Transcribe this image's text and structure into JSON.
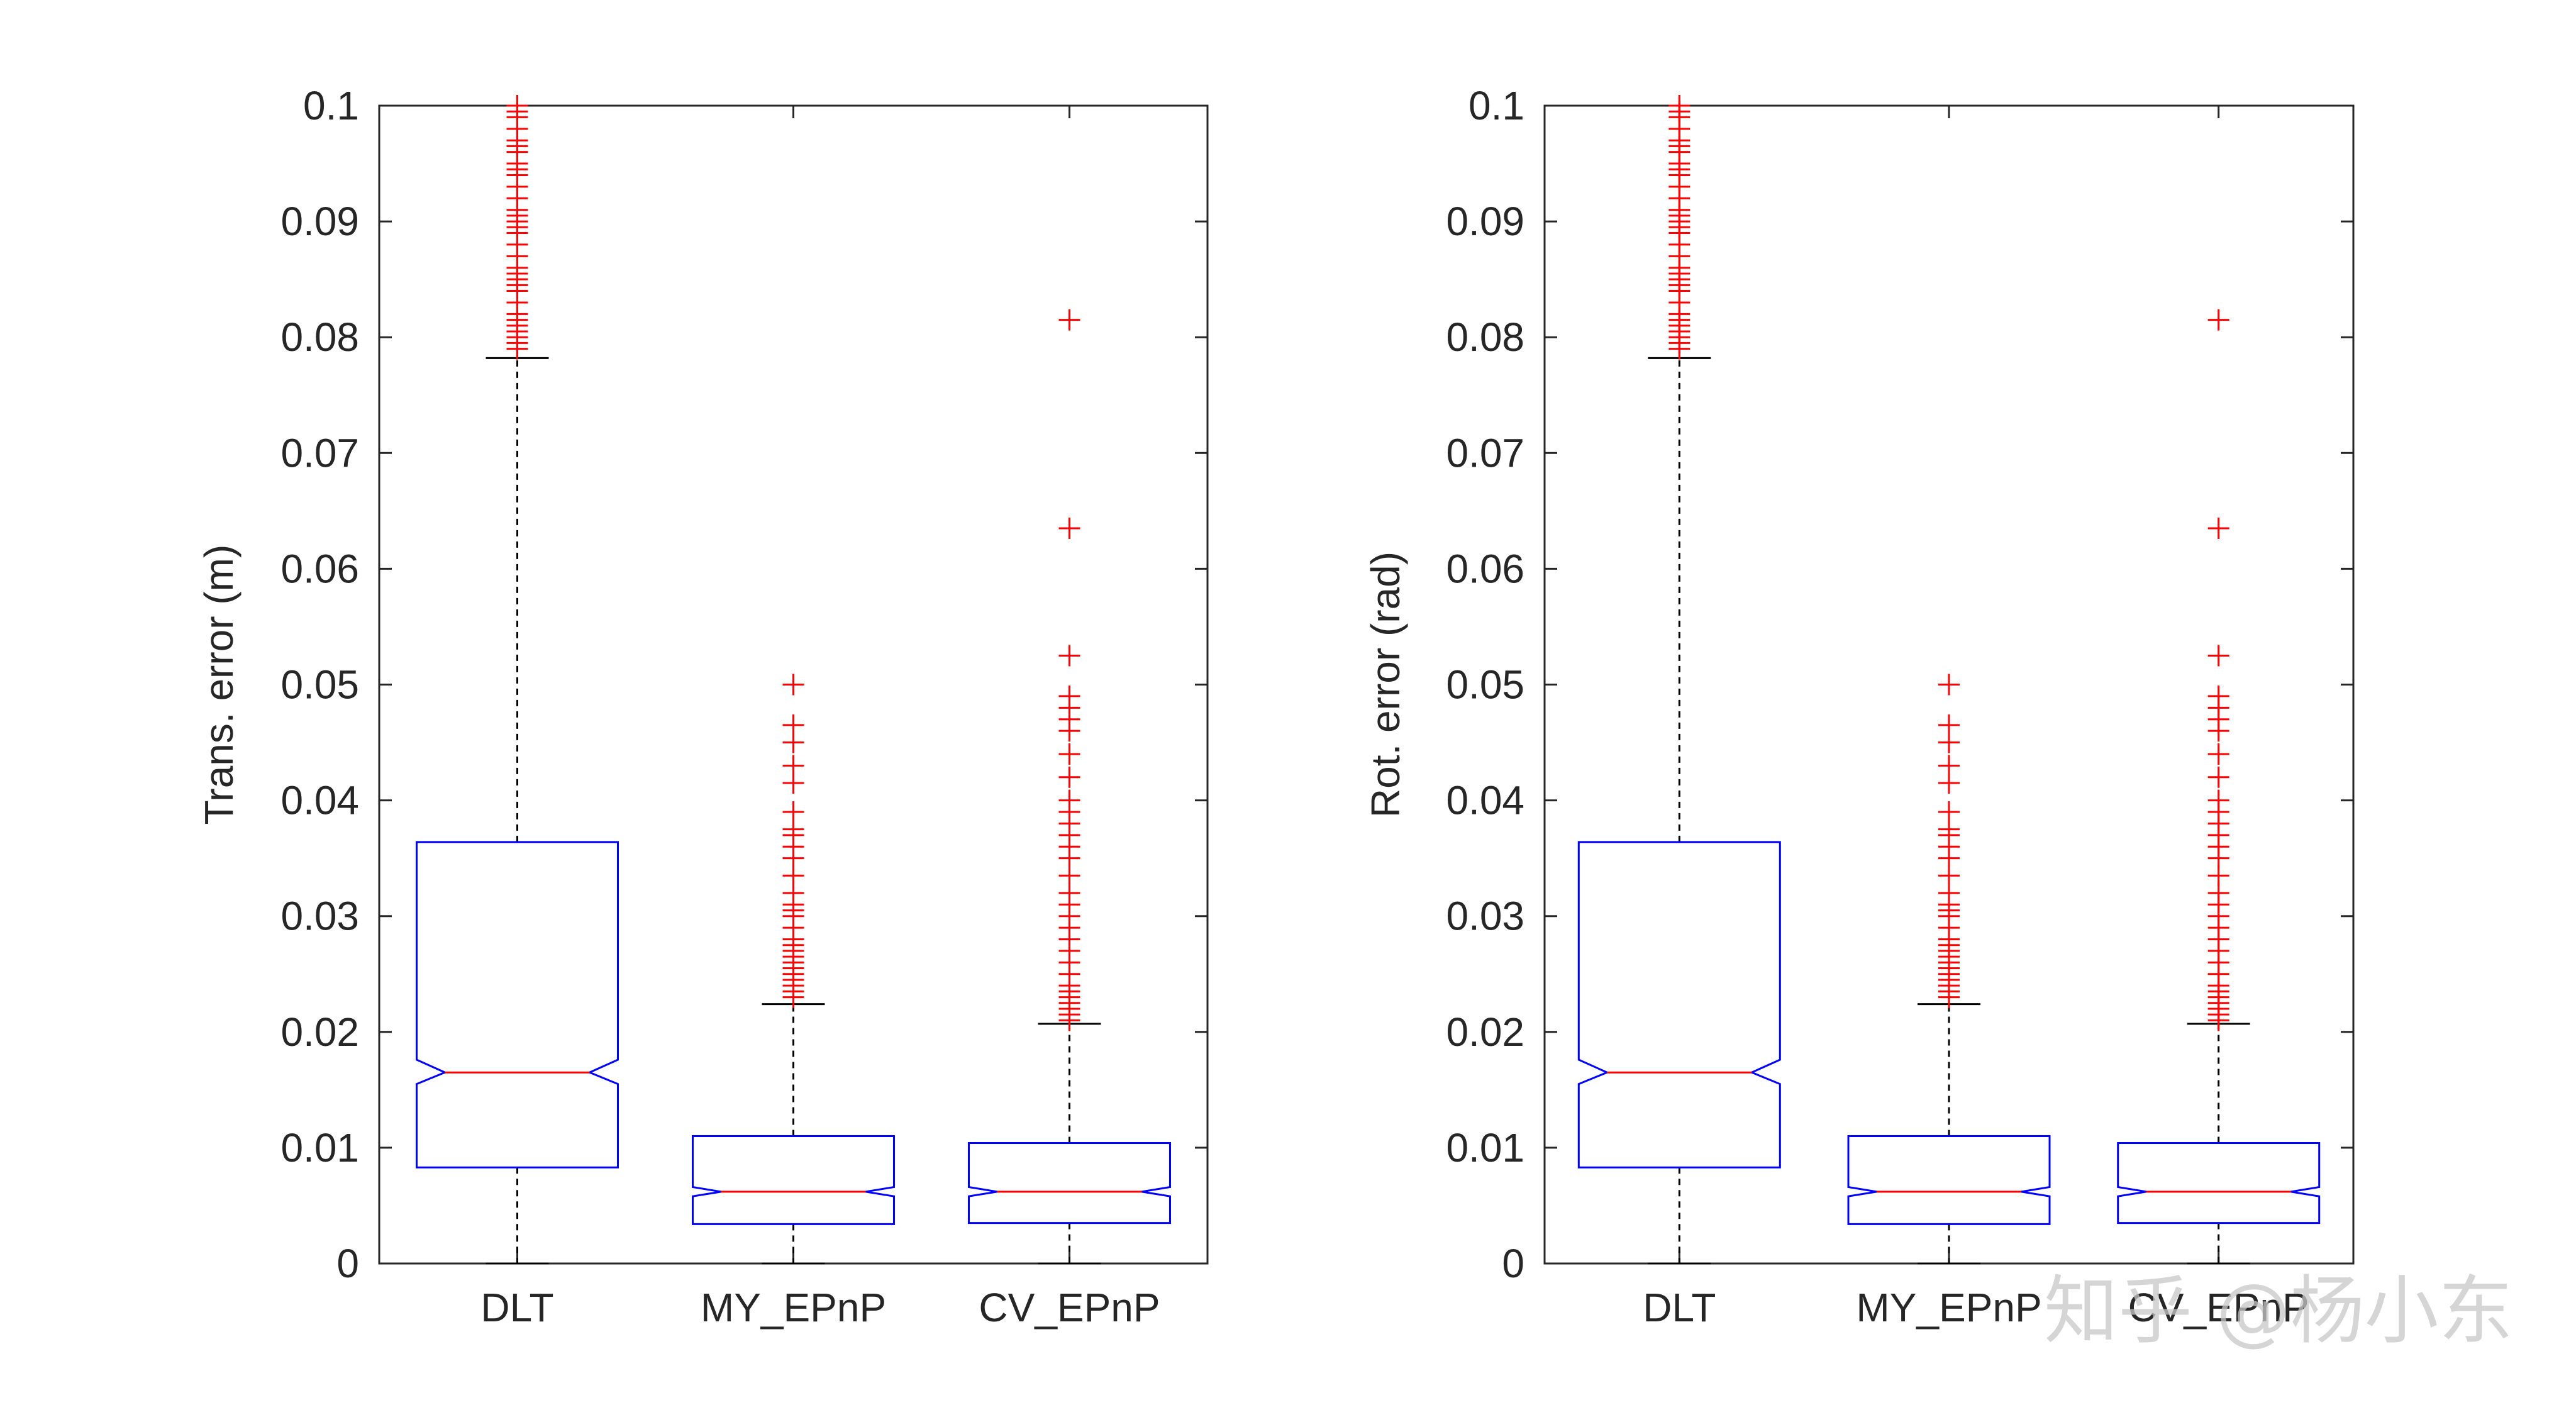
{
  "chart_data": [
    {
      "type": "boxplot",
      "notched": true,
      "ylabel": "Trans. error (m)",
      "ylim": [
        0,
        0.1
      ],
      "yticks": [
        "0",
        "0.01",
        "0.02",
        "0.03",
        "0.04",
        "0.05",
        "0.06",
        "0.07",
        "0.08",
        "0.09",
        "0.1"
      ],
      "categories": [
        "DLT",
        "MY_EPnP",
        "CV_EPnP"
      ],
      "colors": {
        "box": "#0000ff",
        "median": "#ff0000",
        "outlier": "#ff0000",
        "whisker": "#000000",
        "axis": "#262626"
      },
      "boxes": [
        {
          "name": "DLT",
          "min": 0.0,
          "q1": 0.0083,
          "median": 0.0165,
          "q3": 0.0364,
          "max": 0.0782,
          "notch_lo": 0.0155,
          "notch_hi": 0.0176,
          "outliers": [
            0.079,
            0.0795,
            0.08,
            0.0805,
            0.081,
            0.0815,
            0.082,
            0.083,
            0.084,
            0.0845,
            0.085,
            0.0855,
            0.086,
            0.087,
            0.088,
            0.089,
            0.0895,
            0.09,
            0.0905,
            0.091,
            0.092,
            0.093,
            0.094,
            0.0945,
            0.095,
            0.096,
            0.0965,
            0.097,
            0.098,
            0.099,
            0.0995,
            0.1
          ]
        },
        {
          "name": "MY_EPnP",
          "min": 0.0,
          "q1": 0.0034,
          "median": 0.0062,
          "q3": 0.011,
          "max": 0.0224,
          "notch_lo": 0.0058,
          "notch_hi": 0.0066,
          "outliers": [
            0.023,
            0.0235,
            0.024,
            0.0245,
            0.025,
            0.0255,
            0.026,
            0.0265,
            0.027,
            0.0275,
            0.028,
            0.029,
            0.03,
            0.0305,
            0.031,
            0.032,
            0.0335,
            0.035,
            0.036,
            0.037,
            0.0375,
            0.039,
            0.0415,
            0.043,
            0.045,
            0.0465,
            0.05
          ]
        },
        {
          "name": "CV_EPnP",
          "min": 0.0,
          "q1": 0.0035,
          "median": 0.0062,
          "q3": 0.0104,
          "max": 0.0207,
          "notch_lo": 0.0058,
          "notch_hi": 0.0066,
          "outliers": [
            0.021,
            0.0215,
            0.022,
            0.0225,
            0.023,
            0.0235,
            0.024,
            0.025,
            0.026,
            0.027,
            0.028,
            0.029,
            0.03,
            0.031,
            0.032,
            0.0335,
            0.035,
            0.036,
            0.037,
            0.038,
            0.039,
            0.04,
            0.042,
            0.044,
            0.046,
            0.047,
            0.048,
            0.049,
            0.0525,
            0.0635,
            0.0815
          ]
        }
      ]
    },
    {
      "type": "boxplot",
      "notched": true,
      "ylabel": "Rot. error (rad)",
      "ylim": [
        0,
        0.1
      ],
      "yticks": [
        "0",
        "0.01",
        "0.02",
        "0.03",
        "0.04",
        "0.05",
        "0.06",
        "0.07",
        "0.08",
        "0.09",
        "0.1"
      ],
      "categories": [
        "DLT",
        "MY_EPnP",
        "CV_EPnP"
      ],
      "colors": {
        "box": "#0000ff",
        "median": "#ff0000",
        "outlier": "#ff0000",
        "whisker": "#000000",
        "axis": "#262626"
      },
      "boxes": [
        {
          "name": "DLT",
          "min": 0.0,
          "q1": 0.0083,
          "median": 0.0165,
          "q3": 0.0364,
          "max": 0.0782,
          "notch_lo": 0.0155,
          "notch_hi": 0.0176,
          "outliers": [
            0.079,
            0.0795,
            0.08,
            0.0805,
            0.081,
            0.0815,
            0.082,
            0.083,
            0.084,
            0.0845,
            0.085,
            0.0855,
            0.086,
            0.087,
            0.088,
            0.089,
            0.0895,
            0.09,
            0.0905,
            0.091,
            0.092,
            0.093,
            0.094,
            0.0945,
            0.095,
            0.096,
            0.0965,
            0.097,
            0.098,
            0.099,
            0.0995,
            0.1
          ]
        },
        {
          "name": "MY_EPnP",
          "min": 0.0,
          "q1": 0.0034,
          "median": 0.0062,
          "q3": 0.011,
          "max": 0.0224,
          "notch_lo": 0.0058,
          "notch_hi": 0.0066,
          "outliers": [
            0.023,
            0.0235,
            0.024,
            0.0245,
            0.025,
            0.0255,
            0.026,
            0.0265,
            0.027,
            0.0275,
            0.028,
            0.029,
            0.03,
            0.0305,
            0.031,
            0.032,
            0.0335,
            0.035,
            0.036,
            0.037,
            0.0375,
            0.039,
            0.0415,
            0.043,
            0.045,
            0.0465,
            0.05
          ]
        },
        {
          "name": "CV_EPnP",
          "min": 0.0,
          "q1": 0.0035,
          "median": 0.0062,
          "q3": 0.0104,
          "max": 0.0207,
          "notch_lo": 0.0058,
          "notch_hi": 0.0066,
          "outliers": [
            0.021,
            0.0215,
            0.022,
            0.0225,
            0.023,
            0.0235,
            0.024,
            0.025,
            0.026,
            0.027,
            0.028,
            0.029,
            0.03,
            0.031,
            0.032,
            0.0335,
            0.035,
            0.036,
            0.037,
            0.038,
            0.039,
            0.04,
            0.042,
            0.044,
            0.046,
            0.047,
            0.048,
            0.049,
            0.0525,
            0.0635,
            0.0815
          ]
        }
      ]
    }
  ],
  "watermark": {
    "text": "知乎 @杨小东"
  }
}
